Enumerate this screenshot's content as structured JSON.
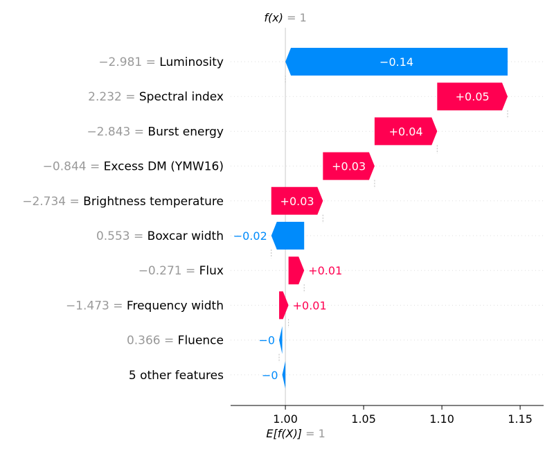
{
  "chart_data": {
    "type": "waterfall",
    "f_x": {
      "label": "f(x)",
      "value_text": "= 1"
    },
    "expected": {
      "label": "E[f(X)]",
      "value_text": "= 1"
    },
    "base_value": 1.0,
    "final_value": 1.0,
    "xlim": [
      0.965,
      1.165
    ],
    "xticks": [
      1.0,
      1.05,
      1.1,
      1.15
    ],
    "xtick_labels": [
      "1.00",
      "1.05",
      "1.10",
      "1.15"
    ],
    "features": [
      {
        "value_label": "−2.981 =",
        "name": "Luminosity",
        "start": 1.0,
        "end": 1.142,
        "contribution": -0.14,
        "label": "−0.14",
        "label_inside": true
      },
      {
        "value_label": "2.232 =",
        "name": "Spectral index",
        "start": 1.097,
        "end": 1.142,
        "contribution": 0.05,
        "label": "+0.05",
        "label_inside": true
      },
      {
        "value_label": "−2.843 =",
        "name": "Burst energy",
        "start": 1.057,
        "end": 1.097,
        "contribution": 0.04,
        "label": "+0.04",
        "label_inside": true
      },
      {
        "value_label": "−0.844 =",
        "name": "Excess DM (YMW16)",
        "start": 1.024,
        "end": 1.057,
        "contribution": 0.03,
        "label": "+0.03",
        "label_inside": true
      },
      {
        "value_label": "−2.734 =",
        "name": "Brightness temperature",
        "start": 0.991,
        "end": 1.024,
        "contribution": 0.03,
        "label": "+0.03",
        "label_inside": true
      },
      {
        "value_label": "0.553 =",
        "name": "Boxcar width",
        "start": 0.991,
        "end": 1.012,
        "contribution": -0.02,
        "label": "−0.02",
        "label_inside": false
      },
      {
        "value_label": "−0.271 =",
        "name": "Flux",
        "start": 1.002,
        "end": 1.012,
        "contribution": 0.01,
        "label": "+0.01",
        "label_inside": false
      },
      {
        "value_label": "−1.473 =",
        "name": "Frequency width",
        "start": 0.996,
        "end": 1.002,
        "contribution": 0.01,
        "label": "+0.01",
        "label_inside": false
      },
      {
        "value_label": "0.366 =",
        "name": "Fluence",
        "start": 0.996,
        "end": 0.998,
        "contribution": 0.0,
        "label": "−0",
        "label_inside": false
      },
      {
        "value_label": "",
        "name": "5 other features",
        "start": 0.998,
        "end": 1.0,
        "contribution": 0.0,
        "label": "−0",
        "label_inside": false
      }
    ],
    "colors": {
      "positive": "#ff0051",
      "negative": "#008bfb",
      "value_gray": "#999999",
      "text": "#000000",
      "axis": "#000000",
      "grid": "#cccccc"
    },
    "grid": true
  }
}
